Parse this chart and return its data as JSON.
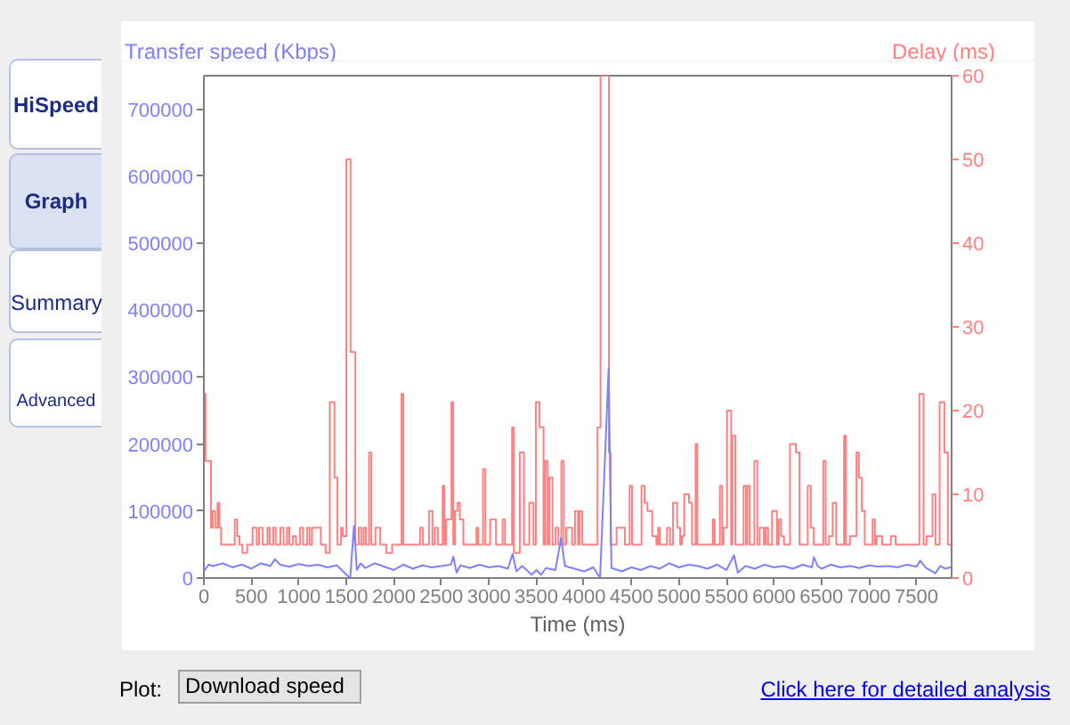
{
  "chart_data": {
    "type": "step",
    "xlabel": "Time (ms)",
    "ylabel": "Transfer speed (Kbps)",
    "y2label": "Delay (ms)",
    "xlim": [
      0,
      7870
    ],
    "xticks": [
      0,
      500,
      1000,
      1500,
      2000,
      2500,
      3000,
      3500,
      4000,
      4500,
      5000,
      5500,
      6000,
      6500,
      7000,
      7500
    ],
    "ylim": [
      0,
      750000
    ],
    "yticks": [
      0,
      100000,
      200000,
      300000,
      400000,
      500000,
      600000,
      700000
    ],
    "y2lim": [
      0,
      60
    ],
    "y2ticks": [
      0,
      10,
      20,
      30,
      40,
      50,
      60
    ],
    "series": [
      {
        "axis": "y2",
        "color": "#ff8080",
        "x": [
          0,
          19,
          75,
          94,
          119,
          144,
          163,
          181,
          325,
          350,
          375,
          406,
          456,
          513,
          556,
          581,
          619,
          669,
          694,
          731,
          756,
          806,
          838,
          875,
          900,
          938,
          969,
          1013,
          1044,
          1088,
          1113,
          1138,
          1231,
          1281,
          1325,
          1375,
          1406,
          1444,
          1463,
          1500,
          1544,
          1594,
          1631,
          1656,
          1681,
          1706,
          1738,
          1763,
          1806,
          1856,
          1919,
          1981,
          2081,
          2100,
          2275,
          2306,
          2369,
          2406,
          2431,
          2463,
          2513,
          2531,
          2550,
          2606,
          2625,
          2644,
          2669,
          2694,
          2731,
          2869,
          2888,
          2938,
          2963,
          3013,
          3075,
          3144,
          3169,
          3244,
          3263,
          3325,
          3369,
          3425,
          3469,
          3494,
          3531,
          3575,
          3594,
          3619,
          3638,
          3669,
          3700,
          3731,
          3763,
          3788,
          3813,
          3875,
          3906,
          3938,
          3956,
          3981,
          4144,
          4175,
          4263,
          4281,
          4344,
          4431,
          4481,
          4506,
          4606,
          4638,
          4669,
          4719,
          4763,
          4781,
          4800,
          4875,
          4906,
          4938,
          4981,
          5013,
          5031,
          5056,
          5106,
          5138,
          5175,
          5194,
          5356,
          5375,
          5431,
          5456,
          5469,
          5506,
          5550,
          5563,
          5594,
          5681,
          5706,
          5719,
          5744,
          5794,
          5825,
          5850,
          5894,
          5913,
          5938,
          5981,
          6031,
          6050,
          6075,
          6106,
          6169,
          6231,
          6269,
          6356,
          6388,
          6419,
          6519,
          6544,
          6581,
          6619,
          6656,
          6738,
          6756,
          6800,
          6869,
          6894,
          6925,
          6956,
          7038,
          7063,
          7081,
          7138,
          7231,
          7281,
          7531,
          7575,
          7606,
          7669,
          7700,
          7744,
          7794,
          7831,
          7870
        ],
        "values": [
          22,
          14,
          6,
          8,
          6,
          9,
          6,
          4,
          7,
          5,
          4,
          3,
          4,
          6,
          4,
          6,
          4,
          6,
          4,
          6,
          4,
          6,
          4,
          6,
          4,
          5,
          4,
          6,
          4,
          6,
          4,
          6,
          4,
          3,
          21,
          12,
          4,
          6,
          5,
          50,
          27,
          4,
          6,
          4,
          6,
          4,
          15,
          4,
          6,
          4,
          3,
          4,
          22,
          4,
          6,
          4,
          8,
          4,
          6,
          4,
          11,
          4,
          7,
          21,
          4,
          8,
          9,
          7,
          4,
          6,
          4,
          13,
          4,
          7,
          4,
          7,
          4,
          18,
          3,
          15,
          4,
          9,
          4,
          21,
          18,
          4,
          14,
          4,
          12,
          4,
          6,
          4,
          14,
          4,
          6,
          4,
          8,
          4,
          8,
          4,
          18,
          60,
          15,
          4,
          6,
          4,
          11,
          4,
          11,
          9,
          8,
          5,
          4,
          6,
          4,
          6,
          4,
          9,
          6,
          4,
          5,
          10,
          9,
          4,
          16,
          4,
          7,
          4,
          11,
          4,
          6,
          20,
          4,
          17,
          4,
          11,
          4,
          11,
          4,
          14,
          4,
          6,
          4,
          6,
          4,
          8,
          4,
          7,
          5,
          4,
          16,
          15,
          4,
          11,
          6,
          4,
          14,
          4,
          5,
          9,
          4,
          17,
          4,
          5,
          15,
          12,
          8,
          4,
          7,
          4,
          5,
          4,
          5,
          4,
          22,
          4,
          5,
          10,
          4,
          21,
          15,
          4,
          4
        ]
      },
      {
        "type": "line",
        "color": "#8080ff",
        "x": [
          0,
          50,
          100,
          200,
          300,
          400,
          500,
          600,
          700,
          750,
          800,
          900,
          1000,
          1100,
          1200,
          1300,
          1400,
          1450,
          1500,
          1540,
          1580,
          1610,
          1650,
          1700,
          1800,
          1900,
          2000,
          2100,
          2200,
          2300,
          2400,
          2500,
          2600,
          2625,
          2660,
          2700,
          2800,
          2900,
          3000,
          3100,
          3200,
          3250,
          3290,
          3350,
          3450,
          3500,
          3550,
          3600,
          3700,
          3760,
          3800,
          3900,
          4000,
          4100,
          4170,
          4260,
          4290,
          4400,
          4500,
          4600,
          4700,
          4800,
          4900,
          5000,
          5100,
          5200,
          5300,
          5400,
          5500,
          5580,
          5620,
          5700,
          5800,
          5900,
          6000,
          6100,
          6200,
          6300,
          6400,
          6420,
          6460,
          6500,
          6600,
          6700,
          6800,
          6900,
          7000,
          7100,
          7200,
          7300,
          7400,
          7500,
          7540,
          7600,
          7700,
          7750,
          7800,
          7860
        ],
        "values": [
          10000,
          20000,
          18000,
          22000,
          16000,
          20000,
          14000,
          22000,
          18000,
          28000,
          20000,
          17000,
          21000,
          18000,
          20000,
          16000,
          19000,
          12000,
          5000,
          0,
          78000,
          12000,
          22000,
          15000,
          22000,
          17000,
          12000,
          20000,
          14000,
          19000,
          16000,
          18000,
          20000,
          32000,
          8000,
          19000,
          15000,
          20000,
          16000,
          18000,
          14000,
          36000,
          10000,
          18000,
          5000,
          12000,
          5000,
          15000,
          12000,
          60000,
          18000,
          14000,
          10000,
          16000,
          0,
          313000,
          15000,
          10000,
          16000,
          12000,
          18000,
          14000,
          22000,
          16000,
          20000,
          18000,
          14000,
          20000,
          12000,
          34000,
          8000,
          18000,
          14000,
          20000,
          16000,
          18000,
          14000,
          20000,
          16000,
          31000,
          18000,
          14000,
          20000,
          16000,
          18000,
          15000,
          19000,
          17000,
          18000,
          16000,
          20000,
          17000,
          26000,
          15000,
          7000,
          18000,
          14000,
          16000
        ]
      }
    ],
    "annotations": [
      "HiSpeed",
      "Graph",
      "Summary",
      "Advanced",
      "Plot:",
      "Download speed",
      "Click here for detailed analysis"
    ]
  }
}
